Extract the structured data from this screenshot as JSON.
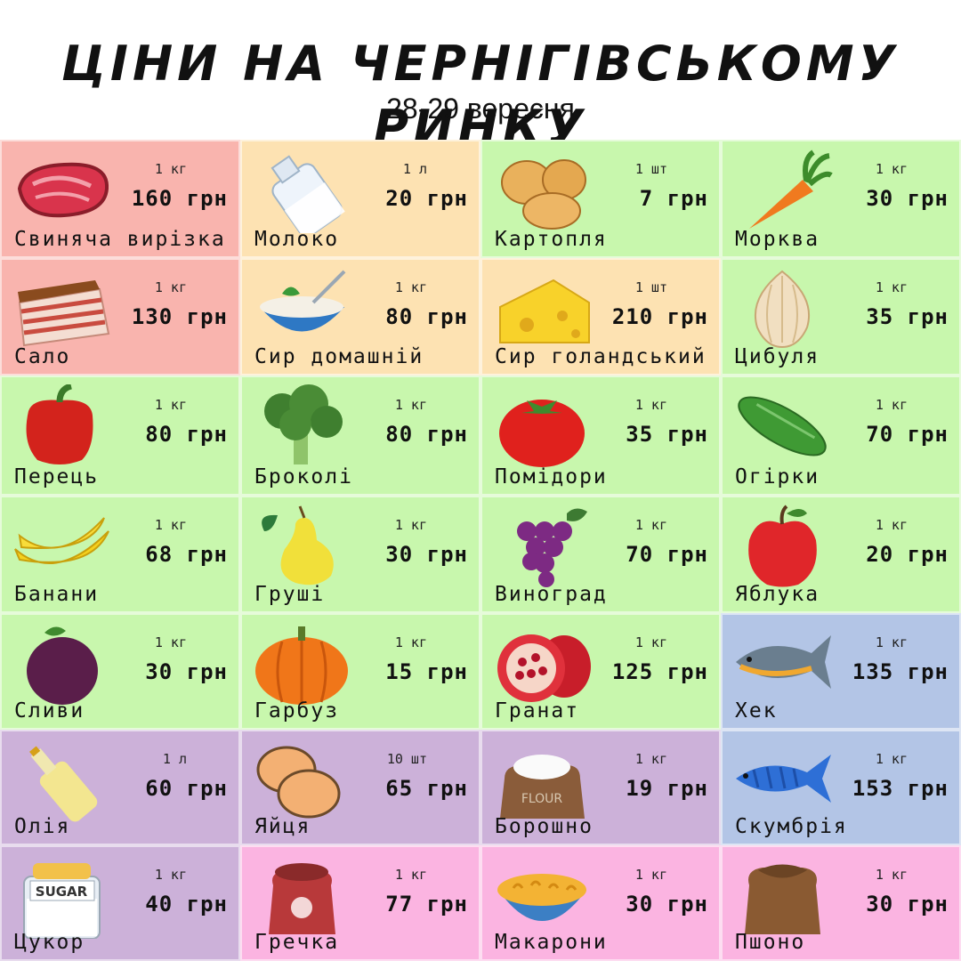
{
  "title": "ЦІНИ НА ЧЕРНІГІВСЬКОМУ РИНКУ",
  "subtitle": "28-29 вересня",
  "colors": {
    "meat": "#f9b4ae",
    "dairy": "#fde2b2",
    "veg": "#c8f7ad",
    "fish": "#b3c5e6",
    "grocery": "#ccb1d9",
    "grain": "#fbb4e1"
  },
  "items": [
    {
      "icon": "pork-tenderloin-icon",
      "unit": "1 кг",
      "price": "160 грн",
      "name": "Свиняча вирізка",
      "color": "meat"
    },
    {
      "icon": "milk-bottle-icon",
      "unit": "1 л",
      "price": "20 грн",
      "name": "Молоко",
      "color": "dairy"
    },
    {
      "icon": "potato-icon",
      "unit": "1 шт",
      "price": "7 грн",
      "name": "Картопля",
      "color": "veg"
    },
    {
      "icon": "carrot-icon",
      "unit": "1 кг",
      "price": "30 грн",
      "name": "Морква",
      "color": "veg"
    },
    {
      "icon": "salo-icon",
      "unit": "1 кг",
      "price": "130 грн",
      "name": "Сало",
      "color": "meat"
    },
    {
      "icon": "cottage-cheese-bowl-icon",
      "unit": "1 кг",
      "price": "80 грн",
      "name": "Сир домашній",
      "color": "dairy"
    },
    {
      "icon": "cheese-wedge-icon",
      "unit": "1 шт",
      "price": "210 грн",
      "name": "Сир голандський",
      "color": "dairy"
    },
    {
      "icon": "onion-icon",
      "unit": "1 кг",
      "price": "35 грн",
      "name": "Цибуля",
      "color": "veg"
    },
    {
      "icon": "bell-pepper-icon",
      "unit": "1 кг",
      "price": "80 грн",
      "name": "Перець",
      "color": "veg"
    },
    {
      "icon": "broccoli-icon",
      "unit": "1 кг",
      "price": "80 грн",
      "name": "Броколі",
      "color": "veg"
    },
    {
      "icon": "tomato-icon",
      "unit": "1 кг",
      "price": "35 грн",
      "name": "Помідори",
      "color": "veg"
    },
    {
      "icon": "cucumber-icon",
      "unit": "1 кг",
      "price": "70 грн",
      "name": "Огірки",
      "color": "veg"
    },
    {
      "icon": "bananas-icon",
      "unit": "1 кг",
      "price": "68 грн",
      "name": "Банани",
      "color": "veg"
    },
    {
      "icon": "pear-icon",
      "unit": "1 кг",
      "price": "30 грн",
      "name": "Груші",
      "color": "veg"
    },
    {
      "icon": "grapes-icon",
      "unit": "1 кг",
      "price": "70 грн",
      "name": "Виноград",
      "color": "veg"
    },
    {
      "icon": "apple-icon",
      "unit": "1 кг",
      "price": "20 грн",
      "name": "Яблука",
      "color": "veg"
    },
    {
      "icon": "plum-icon",
      "unit": "1 кг",
      "price": "30 грн",
      "name": "Сливи",
      "color": "veg"
    },
    {
      "icon": "pumpkin-icon",
      "unit": "1 кг",
      "price": "15 грн",
      "name": "Гарбуз",
      "color": "veg"
    },
    {
      "icon": "pomegranate-icon",
      "unit": "1 кг",
      "price": "125 грн",
      "name": "Гранат",
      "color": "veg"
    },
    {
      "icon": "hake-fish-icon",
      "unit": "1 кг",
      "price": "135 грн",
      "name": "Хек",
      "color": "fish"
    },
    {
      "icon": "oil-bottle-icon",
      "unit": "1 л",
      "price": "60 грн",
      "name": "Олія",
      "color": "grocery"
    },
    {
      "icon": "eggs-icon",
      "unit": "10 шт",
      "price": "65 грн",
      "name": "Яйця",
      "color": "grocery"
    },
    {
      "icon": "flour-sack-icon",
      "unit": "1 кг",
      "price": "19 грн",
      "name": "Борошно",
      "color": "grocery",
      "label": "FLOUR"
    },
    {
      "icon": "mackerel-fish-icon",
      "unit": "1 кг",
      "price": "153 грн",
      "name": "Скумбрія",
      "color": "fish"
    },
    {
      "icon": "sugar-jar-icon",
      "unit": "1 кг",
      "price": "40 грн",
      "name": "Цукор",
      "color": "grocery",
      "label": "SUGAR"
    },
    {
      "icon": "buckwheat-sack-icon",
      "unit": "1 кг",
      "price": "77 грн",
      "name": "Гречка",
      "color": "grain"
    },
    {
      "icon": "pasta-bowl-icon",
      "unit": "1 кг",
      "price": "30 грн",
      "name": "Макарони",
      "color": "grain"
    },
    {
      "icon": "millet-sack-icon",
      "unit": "1 кг",
      "price": "30 грн",
      "name": "Пшоно",
      "color": "grain"
    }
  ]
}
